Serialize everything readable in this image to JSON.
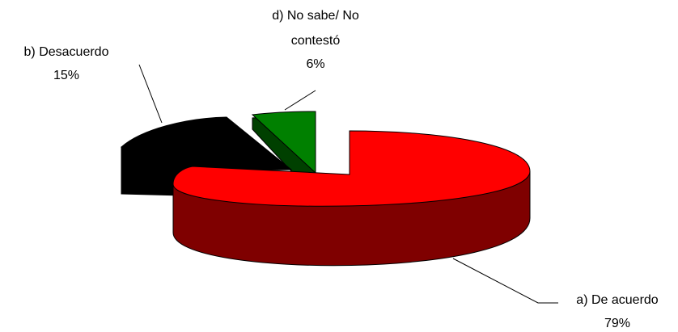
{
  "chart_data": {
    "type": "pie",
    "style": "3d-exploded",
    "title": "",
    "slices": [
      {
        "label": "a) De acuerdo",
        "value": 79,
        "value_label": "79%",
        "color": "#ff0000",
        "side_color": "#7f0000"
      },
      {
        "label": "b) Desacuerdo",
        "value": 15,
        "value_label": "15%",
        "color": "#000000",
        "side_color": "#000000"
      },
      {
        "label": "d) No sabe/ No contestó",
        "label_lines": [
          "d) No sabe/ No",
          "contestó"
        ],
        "value": 6,
        "value_label": "6%",
        "color": "#008000",
        "side_color": "#004000"
      }
    ]
  }
}
